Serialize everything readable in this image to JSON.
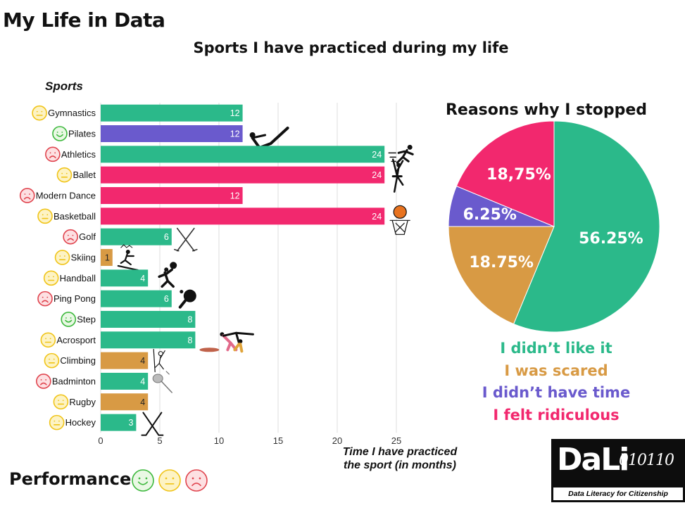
{
  "page_title": "My Life in Data",
  "chart_data": [
    {
      "type": "bar",
      "orientation": "horizontal",
      "title": "Sports I have practiced during my life",
      "ylabel": "Sports",
      "xlabel": "Time I have practiced the sport (in months)",
      "xlim": [
        0,
        25
      ],
      "xticks": [
        0,
        5,
        10,
        15,
        20,
        25
      ],
      "grid": true,
      "categories": [
        "Gymnastics",
        "Pilates",
        "Athletics",
        "Ballet",
        "Modern Dance",
        "Basketball",
        "Golf",
        "Skiing",
        "Handball",
        "Ping Pong",
        "Step",
        "Acrosport",
        "Climbing",
        "Badminton",
        "Rugby",
        "Hockey"
      ],
      "values": [
        12,
        12,
        24,
        24,
        12,
        24,
        6,
        1,
        4,
        6,
        8,
        8,
        4,
        4,
        4,
        3
      ],
      "bar_reason": [
        "didnt_like",
        "no_time",
        "didnt_like",
        "ridiculous",
        "ridiculous",
        "ridiculous",
        "didnt_like",
        "scared",
        "didnt_like",
        "didnt_like",
        "didnt_like",
        "didnt_like",
        "scared",
        "didnt_like",
        "scared",
        "didnt_like"
      ],
      "performance": [
        "neutral",
        "good",
        "bad",
        "neutral",
        "bad",
        "neutral",
        "bad",
        "neutral",
        "neutral",
        "bad",
        "good",
        "neutral",
        "neutral",
        "bad",
        "neutral",
        "neutral"
      ],
      "sport_icons": [
        "none",
        "pilates-icon",
        "runner-icon",
        "ballerina-icon",
        "none",
        "basketball-hoop-icon",
        "golf-clubs-icon",
        "skier-icon",
        "handball-player-icon",
        "ping-pong-paddle-icon",
        "none",
        "acrosport-icon",
        "climber-icon",
        "badminton-racket-icon",
        "none",
        "hockey-sticks-icon"
      ]
    },
    {
      "type": "pie",
      "title": "Reasons why I stopped",
      "slices": [
        {
          "key": "didnt_like",
          "label": "I didn’t like it",
          "value": 56.25,
          "display": "56.25%"
        },
        {
          "key": "scared",
          "label": "I was scared",
          "value": 18.75,
          "display": "18.75%"
        },
        {
          "key": "no_time",
          "label": "I didn’t have time",
          "value": 6.25,
          "display": "6.25%"
        },
        {
          "key": "ridiculous",
          "label": "I felt ridiculous",
          "value": 18.75,
          "display": "18,75%"
        }
      ]
    }
  ],
  "colors": {
    "didnt_like": "#2bb98a",
    "scared": "#d89a44",
    "no_time": "#6a5acd",
    "ridiculous": "#f2286e",
    "face_good": "#3cb83c",
    "face_neutral": "#f0c419",
    "face_bad": "#e0444e",
    "face_good_fill": "#e9f8e4",
    "face_neutral_fill": "#fdf3c4",
    "face_bad_fill": "#fde0e2",
    "grid": "#dedede"
  },
  "performance_legend": {
    "label": "Performance:",
    "faces": [
      "good",
      "neutral",
      "bad"
    ]
  },
  "logo": {
    "name": "DaLi",
    "bits": "010110",
    "tagline": "Data Literacy for Citizenship"
  }
}
